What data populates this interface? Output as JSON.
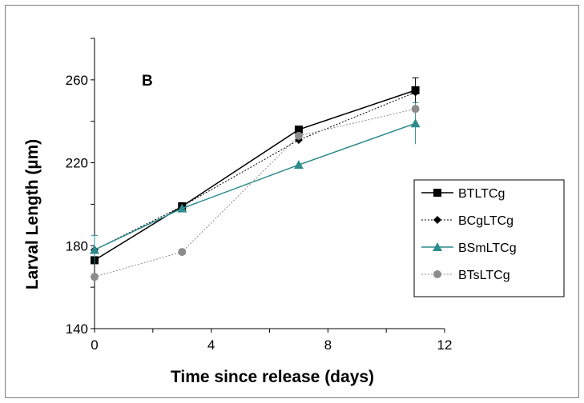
{
  "chart_data": {
    "type": "line",
    "panel_label": "B",
    "xlabel": "Time since release (days)",
    "ylabel": "Larval Length (µm)",
    "xlim": [
      0,
      12
    ],
    "ylim": [
      140,
      280
    ],
    "x_ticks": [
      0,
      4,
      8,
      12
    ],
    "y_ticks": [
      140,
      180,
      220,
      260
    ],
    "grid": false,
    "legend_position": "right",
    "series": [
      {
        "name": "BTLTCg",
        "x": [
          0,
          3,
          7,
          11
        ],
        "y": [
          173,
          199,
          236,
          255
        ],
        "err": [
          0,
          0,
          0,
          6
        ],
        "color": "#000000",
        "marker": "square",
        "dash": "solid"
      },
      {
        "name": "BCgLTCg",
        "x": [
          0,
          3,
          7,
          11
        ],
        "y": [
          178,
          199,
          231,
          254
        ],
        "err": [
          0,
          0,
          0,
          0
        ],
        "color": "#000000",
        "marker": "diamond",
        "dash": "dotted"
      },
      {
        "name": "BSmLTCg",
        "x": [
          0,
          3,
          7,
          11
        ],
        "y": [
          178,
          198,
          219,
          239
        ],
        "err": [
          7,
          0,
          0,
          10
        ],
        "color": "#2e8b8b",
        "marker": "triangle",
        "dash": "solid"
      },
      {
        "name": "BTsLTCg",
        "x": [
          0,
          3,
          7,
          11
        ],
        "y": [
          165,
          177,
          233,
          246
        ],
        "err": [
          0,
          0,
          0,
          0
        ],
        "color": "#8c8c8c",
        "marker": "circle",
        "dash": "dotted"
      }
    ]
  }
}
